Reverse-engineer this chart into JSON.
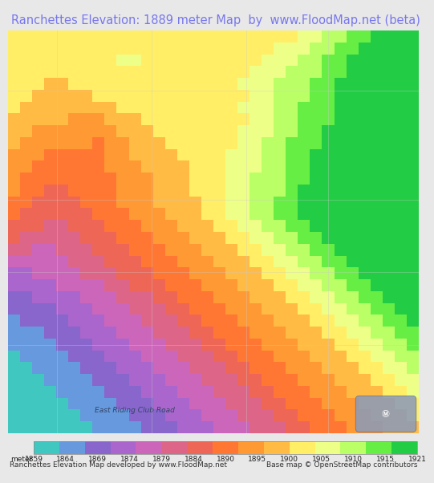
{
  "title": "Ranchettes Elevation: 1889 meter Map  by  www.FloodMap.net (beta)",
  "title_color": "#7777ee",
  "title_bg": "#e8e8e8",
  "title_fontsize": 10.5,
  "colorbar_ticks": [
    1859,
    1864,
    1869,
    1874,
    1879,
    1884,
    1890,
    1895,
    1900,
    1905,
    1910,
    1915,
    1921
  ],
  "colorbar_label": "meter",
  "footer_left": "Ranchettes Elevation Map developed by www.FloodMap.net",
  "footer_right": "Base map © OpenStreetMap contributors",
  "road_label": "East Riding Club Road",
  "osm_bg": "#aabbdd",
  "elev_colors": [
    "#40c8c0",
    "#6699dd",
    "#8866cc",
    "#aa66cc",
    "#cc66bb",
    "#dd6688",
    "#ee6655",
    "#ff7733",
    "#ff9933",
    "#ffbb44",
    "#ffee66",
    "#eeff88",
    "#bbff66",
    "#66ee44",
    "#22cc44"
  ],
  "elevation_grid": [
    [
      10,
      10,
      10,
      10,
      10,
      10,
      10,
      10,
      10,
      10,
      10,
      10,
      10,
      10,
      10,
      10,
      10,
      10,
      10,
      10,
      10,
      10,
      10,
      10,
      11,
      11,
      12,
      12,
      13,
      13,
      14,
      14,
      14,
      14
    ],
    [
      10,
      10,
      10,
      10,
      10,
      10,
      10,
      10,
      10,
      10,
      10,
      10,
      10,
      10,
      10,
      10,
      10,
      10,
      10,
      10,
      10,
      10,
      11,
      11,
      11,
      12,
      12,
      13,
      13,
      14,
      14,
      14,
      14,
      14
    ],
    [
      10,
      10,
      10,
      10,
      10,
      10,
      10,
      10,
      10,
      11,
      11,
      10,
      10,
      10,
      10,
      10,
      10,
      10,
      10,
      10,
      10,
      11,
      11,
      11,
      12,
      12,
      13,
      13,
      14,
      14,
      14,
      14,
      14,
      14
    ],
    [
      10,
      10,
      10,
      10,
      10,
      10,
      10,
      10,
      10,
      10,
      10,
      10,
      10,
      10,
      10,
      10,
      10,
      10,
      10,
      10,
      11,
      11,
      11,
      12,
      12,
      12,
      13,
      13,
      14,
      14,
      14,
      14,
      14,
      14
    ],
    [
      10,
      10,
      10,
      9,
      9,
      10,
      10,
      10,
      10,
      10,
      10,
      10,
      10,
      10,
      10,
      10,
      10,
      10,
      10,
      11,
      11,
      11,
      12,
      12,
      12,
      13,
      13,
      14,
      14,
      14,
      14,
      14,
      14,
      14
    ],
    [
      10,
      10,
      9,
      9,
      9,
      9,
      9,
      10,
      10,
      10,
      10,
      10,
      10,
      10,
      10,
      10,
      10,
      10,
      10,
      10,
      11,
      11,
      12,
      12,
      12,
      13,
      13,
      14,
      14,
      14,
      14,
      14,
      14,
      14
    ],
    [
      10,
      9,
      9,
      9,
      9,
      9,
      9,
      9,
      9,
      10,
      10,
      10,
      10,
      10,
      10,
      10,
      10,
      10,
      10,
      11,
      11,
      11,
      12,
      12,
      13,
      13,
      13,
      14,
      14,
      14,
      14,
      14,
      14,
      14
    ],
    [
      9,
      9,
      9,
      9,
      9,
      8,
      8,
      8,
      9,
      9,
      9,
      10,
      10,
      10,
      10,
      10,
      10,
      10,
      10,
      10,
      11,
      11,
      12,
      12,
      13,
      13,
      13,
      14,
      14,
      14,
      14,
      14,
      14,
      14
    ],
    [
      9,
      9,
      8,
      8,
      8,
      8,
      8,
      8,
      8,
      9,
      9,
      9,
      10,
      10,
      10,
      10,
      10,
      10,
      10,
      11,
      11,
      11,
      12,
      12,
      13,
      13,
      14,
      14,
      14,
      14,
      14,
      14,
      14,
      14
    ],
    [
      9,
      8,
      8,
      8,
      8,
      8,
      8,
      7,
      8,
      8,
      9,
      9,
      9,
      10,
      10,
      10,
      10,
      10,
      10,
      11,
      11,
      12,
      12,
      13,
      13,
      13,
      14,
      14,
      14,
      14,
      14,
      14,
      14,
      14
    ],
    [
      8,
      8,
      8,
      7,
      7,
      7,
      7,
      7,
      8,
      8,
      9,
      9,
      9,
      9,
      10,
      10,
      10,
      10,
      11,
      11,
      11,
      12,
      12,
      13,
      13,
      14,
      14,
      14,
      14,
      14,
      14,
      14,
      14,
      14
    ],
    [
      8,
      8,
      7,
      7,
      7,
      7,
      7,
      7,
      8,
      8,
      8,
      9,
      9,
      9,
      9,
      10,
      10,
      10,
      11,
      11,
      11,
      12,
      12,
      13,
      13,
      14,
      14,
      14,
      14,
      14,
      14,
      14,
      14,
      14
    ],
    [
      8,
      7,
      7,
      7,
      7,
      7,
      7,
      7,
      7,
      8,
      8,
      8,
      9,
      9,
      9,
      10,
      10,
      10,
      11,
      11,
      12,
      12,
      12,
      13,
      13,
      14,
      14,
      14,
      14,
      14,
      14,
      14,
      14,
      14
    ],
    [
      8,
      7,
      7,
      6,
      6,
      7,
      7,
      7,
      7,
      8,
      8,
      8,
      9,
      9,
      9,
      10,
      10,
      10,
      11,
      11,
      12,
      12,
      12,
      13,
      14,
      14,
      14,
      14,
      14,
      14,
      14,
      14,
      14,
      14
    ],
    [
      7,
      7,
      6,
      6,
      6,
      6,
      7,
      7,
      7,
      8,
      8,
      8,
      9,
      9,
      9,
      9,
      10,
      10,
      11,
      11,
      12,
      12,
      13,
      13,
      14,
      14,
      14,
      14,
      14,
      14,
      14,
      14,
      14,
      14
    ],
    [
      7,
      6,
      6,
      6,
      6,
      6,
      6,
      7,
      7,
      7,
      8,
      8,
      8,
      9,
      9,
      9,
      10,
      10,
      11,
      11,
      12,
      12,
      13,
      13,
      14,
      14,
      14,
      14,
      14,
      14,
      14,
      14,
      14,
      14
    ],
    [
      6,
      6,
      6,
      5,
      5,
      6,
      6,
      6,
      7,
      7,
      7,
      8,
      8,
      8,
      9,
      9,
      9,
      10,
      10,
      11,
      11,
      12,
      12,
      13,
      13,
      14,
      14,
      14,
      14,
      14,
      14,
      14,
      14,
      14
    ],
    [
      6,
      5,
      5,
      5,
      5,
      5,
      6,
      6,
      6,
      7,
      7,
      7,
      8,
      8,
      8,
      9,
      9,
      9,
      10,
      10,
      11,
      11,
      12,
      12,
      13,
      13,
      14,
      14,
      14,
      14,
      14,
      14,
      14,
      14
    ],
    [
      5,
      5,
      4,
      4,
      5,
      5,
      5,
      6,
      6,
      6,
      7,
      7,
      7,
      8,
      8,
      8,
      9,
      9,
      9,
      10,
      10,
      11,
      11,
      12,
      12,
      13,
      13,
      14,
      14,
      14,
      14,
      14,
      14,
      14
    ],
    [
      4,
      4,
      4,
      4,
      4,
      5,
      5,
      5,
      6,
      6,
      6,
      7,
      7,
      7,
      8,
      8,
      8,
      9,
      9,
      9,
      10,
      10,
      11,
      11,
      12,
      12,
      13,
      13,
      14,
      14,
      14,
      14,
      14,
      14
    ],
    [
      3,
      3,
      4,
      4,
      4,
      4,
      5,
      5,
      5,
      6,
      6,
      6,
      7,
      7,
      7,
      8,
      8,
      8,
      9,
      9,
      9,
      10,
      10,
      11,
      11,
      12,
      12,
      13,
      13,
      14,
      14,
      14,
      14,
      14
    ],
    [
      3,
      3,
      3,
      3,
      4,
      4,
      4,
      4,
      5,
      5,
      6,
      6,
      6,
      7,
      7,
      7,
      8,
      8,
      8,
      9,
      9,
      9,
      10,
      10,
      11,
      11,
      12,
      12,
      13,
      13,
      14,
      14,
      14,
      14
    ],
    [
      2,
      2,
      3,
      3,
      3,
      3,
      4,
      4,
      4,
      5,
      5,
      5,
      6,
      6,
      7,
      7,
      7,
      8,
      8,
      8,
      9,
      9,
      9,
      10,
      10,
      11,
      11,
      12,
      12,
      13,
      13,
      14,
      14,
      14
    ],
    [
      2,
      2,
      2,
      2,
      3,
      3,
      3,
      4,
      4,
      4,
      5,
      5,
      5,
      6,
      6,
      7,
      7,
      7,
      8,
      8,
      8,
      9,
      9,
      9,
      10,
      10,
      11,
      11,
      12,
      12,
      13,
      13,
      14,
      14
    ],
    [
      1,
      2,
      2,
      2,
      2,
      3,
      3,
      3,
      4,
      4,
      4,
      5,
      5,
      5,
      6,
      6,
      7,
      7,
      7,
      8,
      8,
      8,
      9,
      9,
      9,
      10,
      10,
      11,
      11,
      12,
      12,
      13,
      13,
      14
    ],
    [
      1,
      1,
      1,
      2,
      2,
      2,
      3,
      3,
      3,
      4,
      4,
      4,
      5,
      5,
      5,
      6,
      6,
      7,
      7,
      7,
      8,
      8,
      8,
      9,
      9,
      9,
      10,
      10,
      11,
      11,
      12,
      12,
      13,
      13
    ],
    [
      1,
      1,
      1,
      1,
      2,
      2,
      2,
      3,
      3,
      3,
      4,
      4,
      4,
      5,
      5,
      5,
      6,
      6,
      7,
      7,
      7,
      8,
      8,
      8,
      9,
      9,
      9,
      10,
      10,
      11,
      11,
      12,
      12,
      13
    ],
    [
      0,
      1,
      1,
      1,
      1,
      2,
      2,
      2,
      3,
      3,
      3,
      4,
      4,
      4,
      5,
      5,
      5,
      6,
      6,
      7,
      7,
      7,
      8,
      8,
      8,
      9,
      9,
      9,
      10,
      10,
      11,
      11,
      12,
      12
    ],
    [
      0,
      0,
      1,
      1,
      1,
      1,
      2,
      2,
      2,
      3,
      3,
      3,
      4,
      4,
      4,
      5,
      5,
      5,
      6,
      6,
      7,
      7,
      7,
      8,
      8,
      8,
      9,
      9,
      9,
      10,
      10,
      11,
      11,
      12
    ],
    [
      0,
      0,
      0,
      1,
      1,
      1,
      1,
      2,
      2,
      2,
      3,
      3,
      3,
      4,
      4,
      4,
      5,
      5,
      5,
      6,
      6,
      7,
      7,
      7,
      8,
      8,
      8,
      9,
      9,
      9,
      10,
      10,
      11,
      11
    ],
    [
      0,
      0,
      0,
      0,
      1,
      1,
      1,
      1,
      2,
      2,
      2,
      3,
      3,
      3,
      4,
      4,
      4,
      5,
      5,
      5,
      6,
      6,
      7,
      7,
      7,
      8,
      8,
      8,
      9,
      9,
      9,
      10,
      10,
      11
    ],
    [
      0,
      0,
      0,
      0,
      0,
      1,
      1,
      1,
      1,
      2,
      2,
      2,
      3,
      3,
      3,
      4,
      4,
      4,
      5,
      5,
      5,
      6,
      6,
      7,
      7,
      7,
      8,
      8,
      8,
      9,
      9,
      9,
      10,
      10
    ],
    [
      0,
      0,
      0,
      0,
      0,
      0,
      1,
      1,
      1,
      1,
      2,
      2,
      2,
      3,
      3,
      3,
      4,
      4,
      4,
      5,
      5,
      5,
      6,
      6,
      7,
      7,
      7,
      8,
      8,
      8,
      9,
      9,
      9,
      10
    ],
    [
      0,
      0,
      0,
      0,
      0,
      0,
      0,
      1,
      1,
      1,
      1,
      2,
      2,
      2,
      3,
      3,
      3,
      4,
      4,
      4,
      5,
      5,
      5,
      6,
      6,
      7,
      7,
      7,
      8,
      8,
      8,
      9,
      9,
      9
    ]
  ]
}
